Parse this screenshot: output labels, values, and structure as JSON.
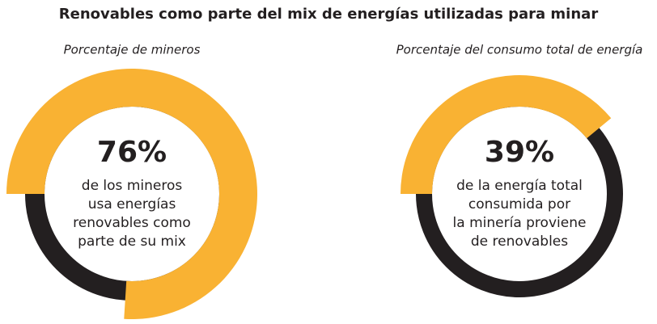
{
  "title": "Renovables como parte del mix de energías utilizadas para minar",
  "chart_data": [
    {
      "type": "donut",
      "subtitle": "Porcentaje de mineros",
      "values": [
        76
      ],
      "value_labels": [
        "76%"
      ],
      "annotation": [
        "de los mineros",
        "usa energías",
        "renovables como",
        "parte de su mix"
      ],
      "color": "#f9b233",
      "track_color": "#231f20"
    },
    {
      "type": "donut",
      "subtitle": "Porcentaje del consumo total de energía",
      "values": [
        39
      ],
      "value_labels": [
        "39%"
      ],
      "annotation": [
        "de la energía total",
        "consumida por",
        "la minería proviene",
        "de renovables"
      ],
      "color": "#f9b233",
      "track_color": "#231f20"
    }
  ]
}
